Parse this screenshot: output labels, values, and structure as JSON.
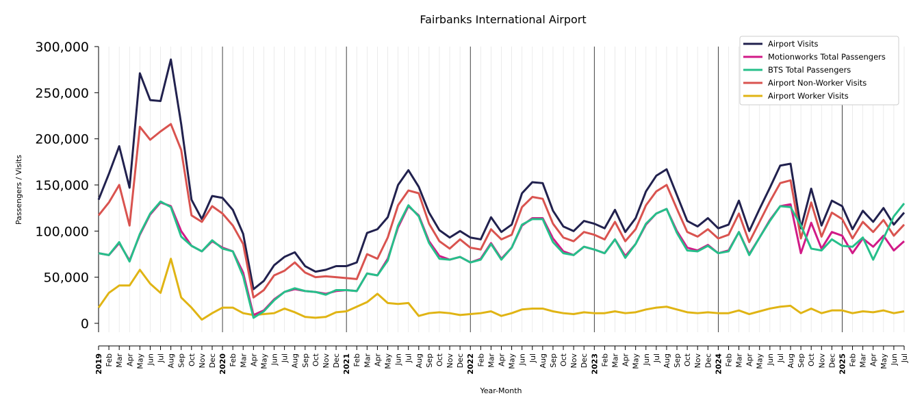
{
  "chart_data": {
    "type": "line",
    "title": "Fairbanks International Airport",
    "xlabel": "Year-Month",
    "ylabel": "Passengers / Visits",
    "ylim": [
      -10000,
      300000
    ],
    "yticks": [
      0,
      50000,
      100000,
      150000,
      200000,
      250000,
      300000
    ],
    "ytick_labels": [
      "0",
      "50,000",
      "100,000",
      "150,000",
      "200,000",
      "250,000",
      "300,000"
    ],
    "x_start": "2019-01",
    "x_end": "2025-07",
    "legend_position": "top-right",
    "grid": "vertical monthly gridlines; darker line at each January",
    "year_labels": [
      "2019",
      "2020",
      "2021",
      "2022",
      "2023",
      "2024",
      "2025"
    ],
    "month_labels": [
      "Feb",
      "Mar",
      "Apr",
      "May",
      "Jun",
      "Jul",
      "Aug",
      "Sep",
      "Oct",
      "Nov",
      "Dec"
    ],
    "series": [
      {
        "name": "Airport Visits",
        "color": "#21214e",
        "values": [
          134000,
          162000,
          192000,
          147000,
          271000,
          242000,
          241000,
          286000,
          216000,
          134000,
          113000,
          138000,
          136000,
          123000,
          97000,
          37000,
          46000,
          63000,
          72000,
          77000,
          62000,
          56000,
          58000,
          62000,
          62000,
          66000,
          98000,
          102000,
          115000,
          150000,
          166000,
          148000,
          120000,
          101000,
          93000,
          100000,
          93000,
          91000,
          115000,
          99000,
          107000,
          141000,
          153000,
          152000,
          122000,
          105000,
          100000,
          111000,
          108000,
          103000,
          123000,
          99000,
          114000,
          143000,
          160000,
          167000,
          139000,
          111000,
          105000,
          114000,
          103000,
          107000,
          133000,
          100000,
          124000,
          147000,
          171000,
          173000,
          103000,
          146000,
          106000,
          133000,
          127000,
          102000,
          122000,
          110000,
          125000,
          107000,
          120000
        ]
      },
      {
        "name": "Motionworks Total Passengers",
        "color": "#d11a87",
        "values": [
          76000,
          74000,
          87000,
          68000,
          96000,
          118000,
          131000,
          127000,
          100000,
          84000,
          78000,
          89000,
          82000,
          78000,
          55000,
          9000,
          14000,
          26000,
          34000,
          37000,
          35000,
          34000,
          32000,
          35000,
          36000,
          35000,
          54000,
          52000,
          70000,
          104000,
          127000,
          117000,
          89000,
          73000,
          69000,
          72000,
          66000,
          70000,
          87000,
          70000,
          82000,
          106000,
          114000,
          114000,
          92000,
          78000,
          74000,
          83000,
          80000,
          76000,
          91000,
          73000,
          86000,
          107000,
          119000,
          124000,
          100000,
          82000,
          79000,
          85000,
          76000,
          79000,
          99000,
          75000,
          93000,
          112000,
          127000,
          129000,
          76000,
          109000,
          81000,
          99000,
          95000,
          76000,
          92000,
          83000,
          95000,
          79000,
          89000
        ]
      },
      {
        "name": "BTS Total Passengers",
        "color": "#26bf8a",
        "values": [
          76000,
          74000,
          88000,
          67000,
          97000,
          119000,
          132000,
          126000,
          94000,
          84000,
          78000,
          90000,
          81000,
          78000,
          51000,
          6000,
          13000,
          25000,
          34000,
          38000,
          35000,
          34000,
          31000,
          36000,
          36000,
          35000,
          54000,
          52000,
          68000,
          106000,
          128000,
          116000,
          87000,
          70000,
          69000,
          72000,
          66000,
          69000,
          86000,
          69000,
          82000,
          107000,
          113000,
          113000,
          88000,
          76000,
          74000,
          83000,
          80000,
          76000,
          91000,
          71000,
          86000,
          108000,
          119000,
          124000,
          98000,
          79000,
          78000,
          84000,
          76000,
          78000,
          99000,
          74000,
          93000,
          111000,
          127000,
          126000,
          106000,
          81000,
          79000,
          91000,
          84000,
          83000,
          93000,
          69000,
          92000,
          116000,
          130000
        ]
      },
      {
        "name": "Airport Non-Worker Visits",
        "color": "#d9534f",
        "values": [
          117000,
          131000,
          150000,
          106000,
          213000,
          199000,
          208000,
          216000,
          188000,
          117000,
          110000,
          127000,
          119000,
          106000,
          86000,
          28000,
          36000,
          52000,
          57000,
          66000,
          55000,
          50000,
          51000,
          50000,
          49000,
          48000,
          75000,
          70000,
          93000,
          128000,
          144000,
          141000,
          108000,
          89000,
          81000,
          91000,
          82000,
          80000,
          102000,
          91000,
          96000,
          126000,
          137000,
          135000,
          108000,
          93000,
          89000,
          99000,
          96000,
          91000,
          110000,
          89000,
          102000,
          128000,
          143000,
          150000,
          124000,
          99000,
          94000,
          102000,
          92000,
          96000,
          119000,
          88000,
          110000,
          132000,
          152000,
          155000,
          92000,
          131000,
          94000,
          120000,
          113000,
          92000,
          110000,
          99000,
          112000,
          95000,
          107000
        ]
      },
      {
        "name": "Airport Worker Visits",
        "color": "#e0b414",
        "values": [
          17000,
          33000,
          41000,
          41000,
          58000,
          43000,
          33000,
          70000,
          28000,
          17000,
          4000,
          11000,
          17000,
          17000,
          11000,
          9000,
          10000,
          11000,
          16000,
          12000,
          7000,
          6000,
          7000,
          12000,
          13000,
          18000,
          23000,
          32000,
          22000,
          21000,
          22000,
          8000,
          11000,
          12000,
          11000,
          9000,
          10000,
          11000,
          13000,
          8000,
          11000,
          15000,
          16000,
          16000,
          13000,
          11000,
          10000,
          12000,
          11000,
          11000,
          13000,
          11000,
          12000,
          15000,
          17000,
          18000,
          15000,
          12000,
          11000,
          12000,
          11000,
          11000,
          14000,
          10000,
          13000,
          16000,
          18000,
          19000,
          11000,
          16000,
          11000,
          14000,
          14000,
          11000,
          13000,
          12000,
          14000,
          11000,
          13000
        ]
      }
    ]
  }
}
